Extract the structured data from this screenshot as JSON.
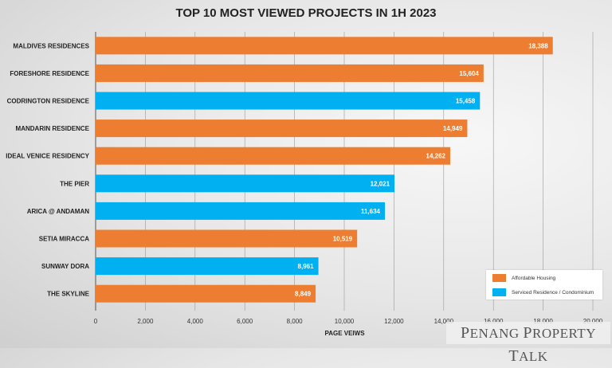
{
  "chart_data": {
    "type": "bar",
    "orientation": "horizontal",
    "title": "TOP 10 MOST VIEWED PROJECTS IN 1H 2023",
    "xlabel": "PAGE VEIWS",
    "ylabel": "",
    "xlim": [
      0,
      20000
    ],
    "xticks": [
      "0",
      "2,000",
      "4,000",
      "6,000",
      "8,000",
      "10,000",
      "12,000",
      "14,000",
      "16,000",
      "18,000",
      "20,000"
    ],
    "grid": "vertical",
    "legend_position": "bottom-right",
    "categories": [
      "MALDIVES RESIDENCES",
      "FORESHORE RESIDENCE",
      "CODRINGTON RESIDENCE",
      "MANDARIN RESIDENCE",
      "IDEAL VENICE RESIDENCY",
      "THE PIER",
      "ARICA @ ANDAMAN",
      "SETIA MIRACCA",
      "SUNWAY DORA",
      "THE SKYLINE"
    ],
    "values": [
      18388,
      15604,
      15458,
      14949,
      14262,
      12021,
      11634,
      10519,
      8961,
      8849
    ],
    "value_labels": [
      "18,388",
      "15,604",
      "15,458",
      "14,949",
      "14,262",
      "12,021",
      "11,634",
      "10,519",
      "8,961",
      "8,849"
    ],
    "bar_series": [
      0,
      0,
      1,
      0,
      0,
      1,
      1,
      0,
      1,
      0
    ],
    "series": [
      {
        "name": "Affordable Housing",
        "color": "#ED7D31"
      },
      {
        "name": "Serviced Residence / Condominium",
        "color": "#00B0F0"
      }
    ]
  },
  "watermark": "PENANG PROPERTY TALK"
}
